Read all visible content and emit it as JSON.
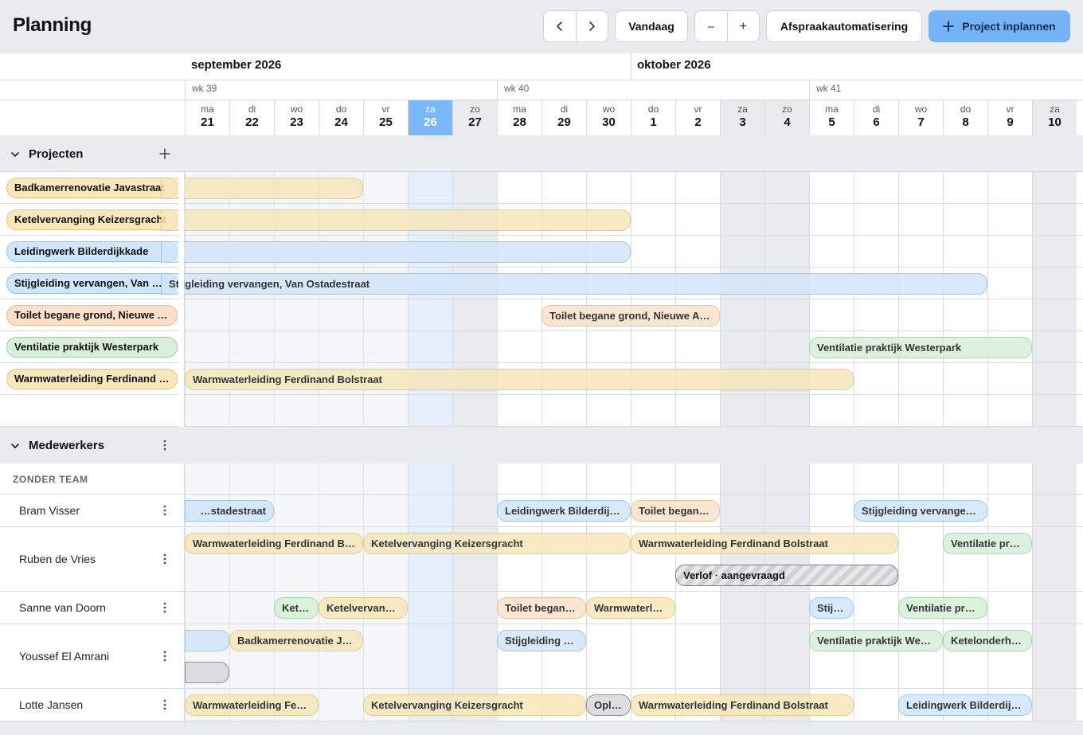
{
  "header": {
    "title": "Planning",
    "prev_label": "‹",
    "next_label": "›",
    "today_label": "Vandaag",
    "zoom_out_label": "–",
    "zoom_in_label": "+",
    "automation_label": "Afspraakautomatisering",
    "primary_label": "Project inplannen"
  },
  "timeline": {
    "months": [
      {
        "label": "september 2026",
        "start": 0
      },
      {
        "label": "oktober 2026",
        "start": 10
      }
    ],
    "weeks": [
      {
        "label": "wk 39",
        "start": 0
      },
      {
        "label": "wk 40",
        "start": 7
      },
      {
        "label": "wk 41",
        "start": 14
      }
    ],
    "days": [
      {
        "dow": "ma",
        "num": "21",
        "weekend": false,
        "today": false
      },
      {
        "dow": "di",
        "num": "22",
        "weekend": false,
        "today": false
      },
      {
        "dow": "wo",
        "num": "23",
        "weekend": false,
        "today": false
      },
      {
        "dow": "do",
        "num": "24",
        "weekend": false,
        "today": false
      },
      {
        "dow": "vr",
        "num": "25",
        "weekend": false,
        "today": false
      },
      {
        "dow": "za",
        "num": "26",
        "weekend": true,
        "today": true
      },
      {
        "dow": "zo",
        "num": "27",
        "weekend": true,
        "today": false
      },
      {
        "dow": "ma",
        "num": "28",
        "weekend": false,
        "today": false
      },
      {
        "dow": "di",
        "num": "29",
        "weekend": false,
        "today": false
      },
      {
        "dow": "wo",
        "num": "30",
        "weekend": false,
        "today": false
      },
      {
        "dow": "do",
        "num": "1",
        "weekend": false,
        "today": false
      },
      {
        "dow": "vr",
        "num": "2",
        "weekend": false,
        "today": false
      },
      {
        "dow": "za",
        "num": "3",
        "weekend": true,
        "today": false
      },
      {
        "dow": "zo",
        "num": "4",
        "weekend": true,
        "today": false
      },
      {
        "dow": "ma",
        "num": "5",
        "weekend": false,
        "today": false
      },
      {
        "dow": "di",
        "num": "6",
        "weekend": false,
        "today": false
      },
      {
        "dow": "wo",
        "num": "7",
        "weekend": false,
        "today": false
      },
      {
        "dow": "do",
        "num": "8",
        "weekend": false,
        "today": false
      },
      {
        "dow": "vr",
        "num": "9",
        "weekend": false,
        "today": false
      },
      {
        "dow": "za",
        "num": "10",
        "weekend": true,
        "today": false
      }
    ]
  },
  "projects": {
    "title": "Projecten",
    "add_icon": "plus-icon",
    "items": [
      {
        "name": "Badkamerrenovatie Javastraat",
        "color": "yellow",
        "bars": [
          {
            "label": "",
            "start": -1,
            "end": 3
          }
        ]
      },
      {
        "name": "Ketelvervanging Keizersgracht",
        "color": "yellow",
        "bars": [
          {
            "label": "",
            "start": -1,
            "end": 9
          }
        ]
      },
      {
        "name": "Leidingwerk Bilderdijkkade",
        "color": "blue",
        "bars": [
          {
            "label": "",
            "start": -1,
            "end": 9
          }
        ]
      },
      {
        "name": "Stijgleiding vervangen, Van Ostadestraat",
        "color": "blue",
        "bars": [
          {
            "label": "Stijgleiding vervangen, Van Ostadestraat",
            "start": -3,
            "end": 17
          }
        ]
      },
      {
        "name": "Toilet begane grond, Nieuwe Achtergracht",
        "color": "orange",
        "bars": [
          {
            "label": "Toilet begane grond, Nieuwe Achtergracht",
            "start": 8,
            "end": 11
          }
        ]
      },
      {
        "name": "Ventilatie praktijk Westerpark",
        "color": "green",
        "bars": [
          {
            "label": "Ventilatie praktijk Westerpark",
            "start": 14,
            "end": 18
          }
        ]
      },
      {
        "name": "Warmwaterleiding Ferdinand Bolstraat",
        "color": "yellow",
        "bars": [
          {
            "label": "Warmwaterleiding Ferdinand Bolstraat",
            "start": 0,
            "end": 14
          }
        ]
      }
    ]
  },
  "employees": {
    "title": "Medewerkers",
    "team_label": "ZONDER TEAM",
    "items": [
      {
        "name": "Bram Visser",
        "lanes": 1,
        "bars": [
          {
            "label": "Stijgleiding vervangen, Van Ostadestraat",
            "color": "blue",
            "start": -3,
            "end": 1,
            "lane": 0
          },
          {
            "label": "Leidingwerk Bilderdijkkade",
            "color": "blue",
            "start": 7,
            "end": 9,
            "lane": 0
          },
          {
            "label": "Toilet begane grond, Nieuwe Achtergracht",
            "color": "orange",
            "start": 10,
            "end": 11,
            "lane": 0
          },
          {
            "label": "Stijgleiding vervangen, Van Ostadestraat",
            "color": "blue",
            "start": 15,
            "end": 17,
            "lane": 0
          }
        ]
      },
      {
        "name": "Ruben de Vries",
        "lanes": 2,
        "bars": [
          {
            "label": "Warmwaterleiding Ferdinand Bolstraat",
            "color": "yellow",
            "start": 0,
            "end": 3,
            "lane": 0
          },
          {
            "label": "Ketelvervanging Keizersgracht",
            "color": "yellow",
            "start": 4,
            "end": 9,
            "lane": 0
          },
          {
            "label": "Warmwaterleiding Ferdinand Bolstraat",
            "color": "yellow",
            "start": 10,
            "end": 15,
            "lane": 0
          },
          {
            "label": "Ventilatie praktijk Westerpark",
            "color": "green",
            "start": 17,
            "end": 18,
            "lane": 0
          },
          {
            "label": "Verlof · aangevraagd",
            "color": "hatch",
            "start": 11,
            "end": 15,
            "lane": 1
          }
        ]
      },
      {
        "name": "Sanne van Doorn",
        "lanes": 1,
        "bars": [
          {
            "label": "Ketelvervanging Keizersgracht",
            "color": "green",
            "start": 2,
            "end": 2,
            "lane": 0
          },
          {
            "label": "Ketelvervanging Keizersgracht",
            "color": "yellow",
            "start": 3,
            "end": 4,
            "lane": 0
          },
          {
            "label": "Toilet begane grond, Nieuwe Achtergracht",
            "color": "orange",
            "start": 7,
            "end": 8,
            "lane": 0
          },
          {
            "label": "Warmwaterleiding Ferdinand Bolstraat",
            "color": "yellow",
            "start": 9,
            "end": 10,
            "lane": 0
          },
          {
            "label": "Stijgleiding vervangen, Van Ostadestraat",
            "color": "blue",
            "start": 14,
            "end": 14,
            "lane": 0
          },
          {
            "label": "Ventilatie praktijk Westerpark",
            "color": "green",
            "start": 16,
            "end": 17,
            "lane": 0
          }
        ]
      },
      {
        "name": "Youssef El Amrani",
        "lanes": 2,
        "bars": [
          {
            "label": "",
            "color": "blue",
            "start": -2,
            "end": 0,
            "lane": 0
          },
          {
            "label": "Badkamerrenovatie Javastraat",
            "color": "yellow",
            "start": 1,
            "end": 3,
            "lane": 0
          },
          {
            "label": "Stijgleiding vervangen, Van Ostadestraat",
            "color": "blue",
            "start": 7,
            "end": 8,
            "lane": 0
          },
          {
            "label": "Ventilatie praktijk Westerpark",
            "color": "green",
            "start": 14,
            "end": 16,
            "lane": 0
          },
          {
            "label": "Ketelonderhoud",
            "color": "green",
            "start": 17,
            "end": 18,
            "lane": 0
          },
          {
            "label": "",
            "color": "grey",
            "start": -2,
            "end": 0,
            "lane": 1
          }
        ]
      },
      {
        "name": "Lotte Jansen",
        "lanes": 1,
        "bars": [
          {
            "label": "Warmwaterleiding Ferdinand Bolstraat",
            "color": "yellow",
            "start": 0,
            "end": 2,
            "lane": 0
          },
          {
            "label": "Ketelvervanging Keizersgracht",
            "color": "yellow",
            "start": 4,
            "end": 8,
            "lane": 0
          },
          {
            "label": "Opleiding",
            "color": "grey",
            "start": 9,
            "end": 9,
            "lane": 0
          },
          {
            "label": "Warmwaterleiding Ferdinand Bolstraat",
            "color": "yellow",
            "start": 10,
            "end": 14,
            "lane": 0
          },
          {
            "label": "Leidingwerk Bilderdijkkade",
            "color": "blue",
            "start": 16,
            "end": 18,
            "lane": 0
          }
        ]
      }
    ]
  }
}
